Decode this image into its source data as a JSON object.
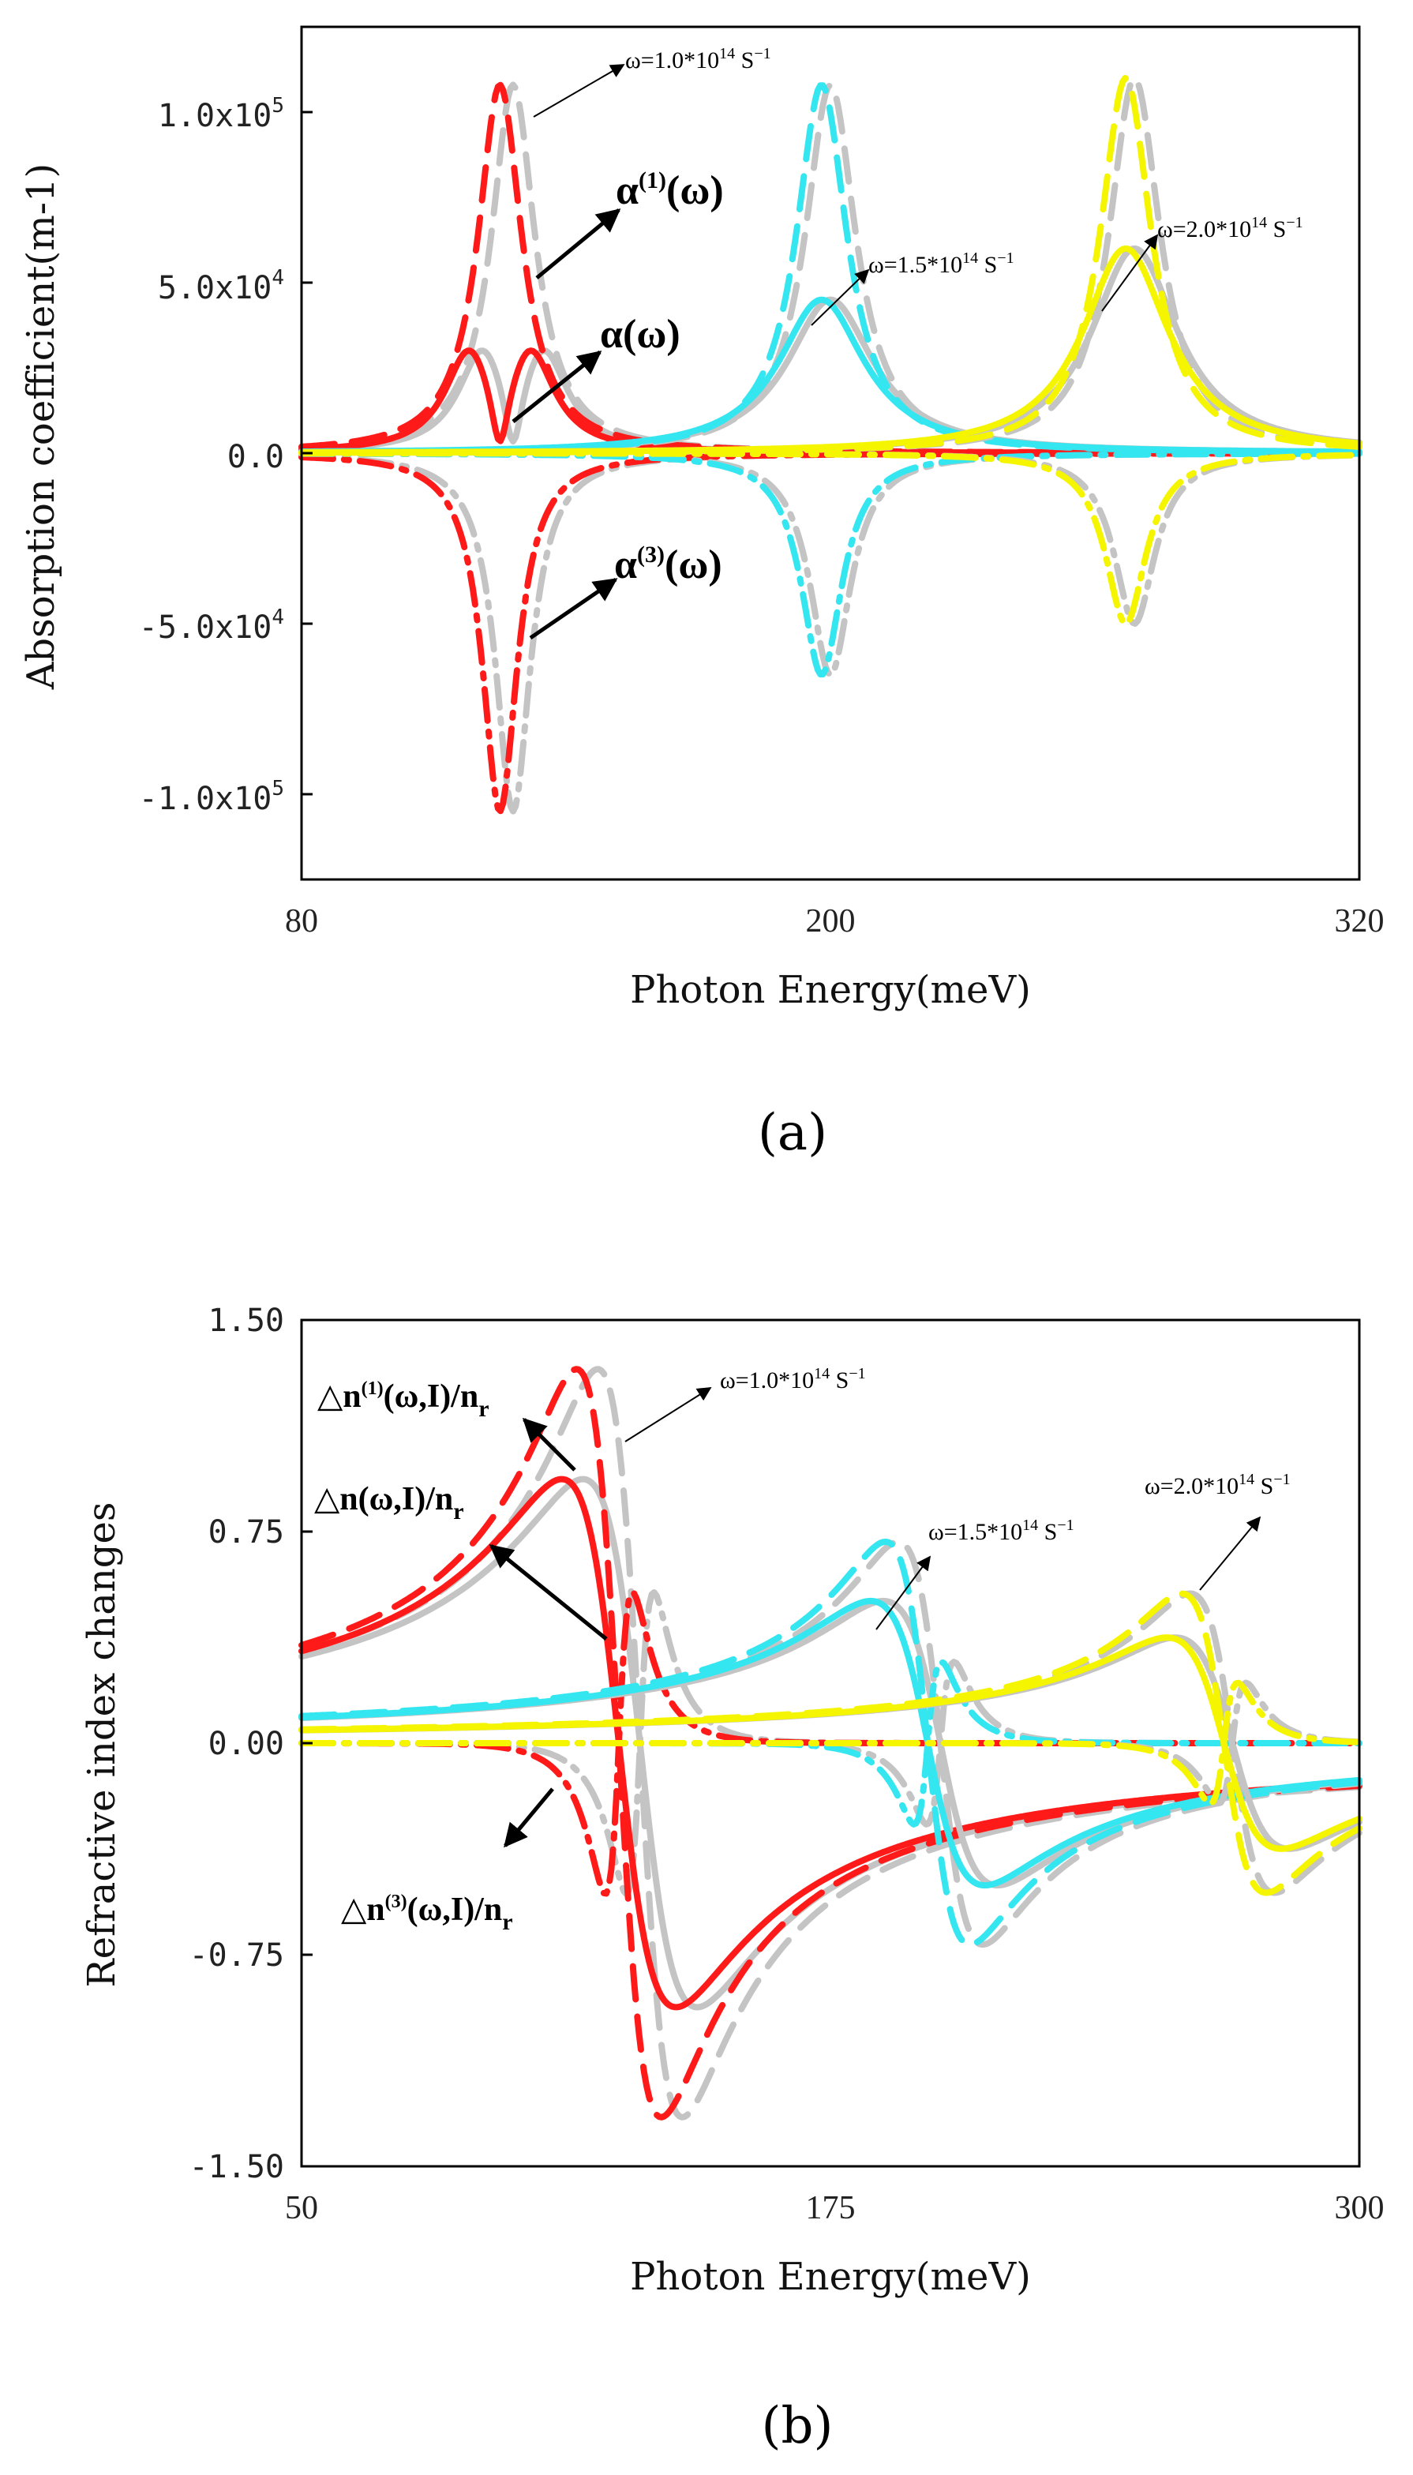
{
  "chart_data": [
    {
      "type": "line",
      "panel": "(a)",
      "xlabel": "Photon Energy(meV)",
      "ylabel": "Absorption coefficient(m-1)",
      "xlim": [
        80,
        320
      ],
      "ylim": [
        -125000,
        125000
      ],
      "x_ticks": [
        "80",
        "200",
        "320"
      ],
      "y_ticks": [
        {
          "label": "1.0x10",
          "exp": "5",
          "value": 100000
        },
        {
          "label": "5.0x10",
          "exp": "4",
          "value": 50000
        },
        {
          "label": "0.0",
          "exp": "",
          "value": 0
        },
        {
          "label": "-5.0x10",
          "exp": "4",
          "value": -50000
        },
        {
          "label": "-1.0x10",
          "exp": "5",
          "value": -100000
        }
      ],
      "groups": [
        {
          "name": "ω=1.0*10^14 S^-1",
          "color": "#ff1a1a",
          "center": 125,
          "gray_center": 128,
          "total_peak": 30000,
          "linear_peak": 108000,
          "third_peak": -105000,
          "width": 6
        },
        {
          "name": "ω=1.5*10^14 S^-1",
          "color": "#33e6f0",
          "center": 198,
          "gray_center": 200,
          "total_peak": 45000,
          "linear_peak": 108000,
          "third_peak": -65000,
          "width": 7
        },
        {
          "name": "ω=2.0*10^14 S^-1",
          "color": "#f5f500",
          "center": 267,
          "gray_center": 269,
          "total_peak": 60000,
          "linear_peak": 110000,
          "third_peak": -50000,
          "width": 7
        }
      ],
      "annotations": {
        "omega1": {
          "pre": "ω=1.0*10",
          "sup": "14",
          "unit": " S",
          "sup2": "−1"
        },
        "omega2": {
          "pre": "ω=1.5*10",
          "sup": "14",
          "unit": " S",
          "sup2": "−1"
        },
        "omega3": {
          "pre": "ω=2.0*10",
          "sup": "14",
          "unit": " S",
          "sup2": "−1"
        },
        "alpha1": {
          "base": "α",
          "sup": "(1)",
          "tail": "(ω)"
        },
        "alpha": {
          "base": "α",
          "tail": "(ω)"
        },
        "alpha3": {
          "base": "α",
          "sup": "(3)",
          "tail": "(ω)"
        }
      }
    },
    {
      "type": "line",
      "panel": "(b)",
      "xlabel": "Photon Energy(meV)",
      "ylabel": "Refractive index changes",
      "xlim": [
        50,
        300
      ],
      "ylim": [
        -1.5,
        1.5
      ],
      "x_ticks": [
        "50",
        "175",
        "300"
      ],
      "y_ticks": [
        {
          "label": "1.50",
          "value": 1.5
        },
        {
          "label": "0.75",
          "value": 0.75
        },
        {
          "label": "0.00",
          "value": 0
        },
        {
          "label": "-0.75",
          "value": -0.75
        },
        {
          "label": "-1.50",
          "value": -1.5
        }
      ],
      "groups": [
        {
          "name": "ω=1.0*10^14 S^-1",
          "color": "#ff1a1a",
          "center": 125,
          "gray_center": 130,
          "width": 10
        },
        {
          "name": "ω=1.5*10^14 S^-1",
          "color": "#33e6f0",
          "center": 198,
          "gray_center": 201,
          "width": 10
        },
        {
          "name": "ω=2.0*10^14 S^-1",
          "color": "#f5f500",
          "center": 268,
          "gray_center": 270,
          "width": 10
        }
      ],
      "annotations": {
        "omega1": {
          "pre": "ω=1.0*10",
          "sup": "14",
          "unit": " S",
          "sup2": "−1"
        },
        "omega2": {
          "pre": "ω=1.5*10",
          "sup": "14",
          "unit": " S",
          "sup2": "−1"
        },
        "omega3": {
          "pre": "ω=2.0*10",
          "sup": "14",
          "unit": " S",
          "sup2": "−1"
        },
        "dn1": {
          "pre": "△n",
          "sup": "(1)",
          "mid": "(ω,I)/n",
          "sub": "r"
        },
        "dn": {
          "pre": "△n",
          "mid": "(ω,I)/n",
          "sub": "r"
        },
        "dn3": {
          "pre": "△n",
          "sup": "(3)",
          "mid": "(ω,I)/n",
          "sub": "r"
        }
      }
    }
  ]
}
